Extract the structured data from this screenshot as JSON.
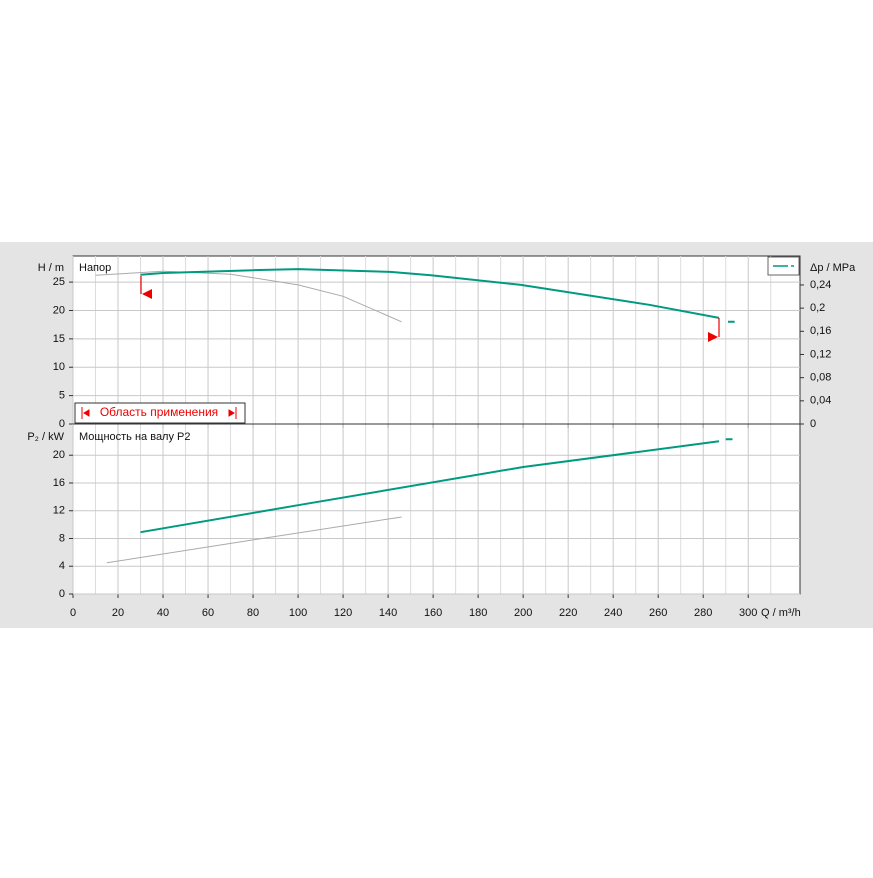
{
  "chart_data": [
    {
      "type": "line",
      "title": "Напор",
      "ylabel": "H / m",
      "y2label": "Δp / MPa",
      "annotation": "Область применения",
      "xlim": [
        0,
        323
      ],
      "xticks": [
        0,
        20,
        40,
        60,
        80,
        100,
        120,
        140,
        160,
        180,
        200,
        220,
        240,
        260,
        280,
        300
      ],
      "ylim": [
        0,
        29.6
      ],
      "yticks": [
        0,
        5,
        10,
        15,
        20,
        25
      ],
      "y2lim": [
        0,
        0.29
      ],
      "y2ticks": [
        0,
        {
          "value": 0.04,
          "label": "0,04"
        },
        {
          "value": 0.08,
          "label": "0,08"
        },
        {
          "value": 0.12,
          "label": "0,12"
        },
        {
          "value": 0.16,
          "label": "0,16"
        },
        {
          "value": 0.2,
          "label": "0,2"
        },
        {
          "value": 0.24,
          "label": "0,24"
        }
      ],
      "grid": true,
      "series": [
        {
          "color": "#aaaaaa",
          "x": [
            10,
            40,
            70,
            100,
            120,
            146
          ],
          "values": [
            26.2,
            26.9,
            26.4,
            24.5,
            22.5,
            18.0
          ]
        },
        {
          "color": "#009a80",
          "x": [
            30,
            40,
            80,
            100,
            141,
            159,
            199,
            256,
            287,
            null,
            291,
            294
          ],
          "values": [
            26.3,
            26.6,
            27.1,
            27.3,
            26.8,
            26.2,
            24.5,
            21.0,
            18.7,
            null,
            18.0,
            18.0
          ]
        }
      ]
    },
    {
      "type": "line",
      "title": "Мощность на валу P2",
      "ylabel": "P₂ / kW",
      "xlabel": "Q / m³/h",
      "xlim": [
        0,
        323
      ],
      "xticks": [
        0,
        20,
        40,
        60,
        80,
        100,
        120,
        140,
        160,
        180,
        200,
        220,
        240,
        260,
        280,
        300
      ],
      "ylim": [
        0,
        24.5
      ],
      "yticks": [
        0,
        4,
        8,
        12,
        16,
        20
      ],
      "grid": true,
      "series": [
        {
          "color": "#aaaaaa",
          "x": [
            15,
            80,
            146
          ],
          "values": [
            4.5,
            7.8,
            11.1
          ]
        },
        {
          "color": "#009a80",
          "x": [
            30,
            100,
            200,
            287,
            null,
            290,
            293
          ],
          "values": [
            8.9,
            12.8,
            18.3,
            22.0,
            null,
            22.3,
            22.3
          ]
        }
      ]
    }
  ]
}
